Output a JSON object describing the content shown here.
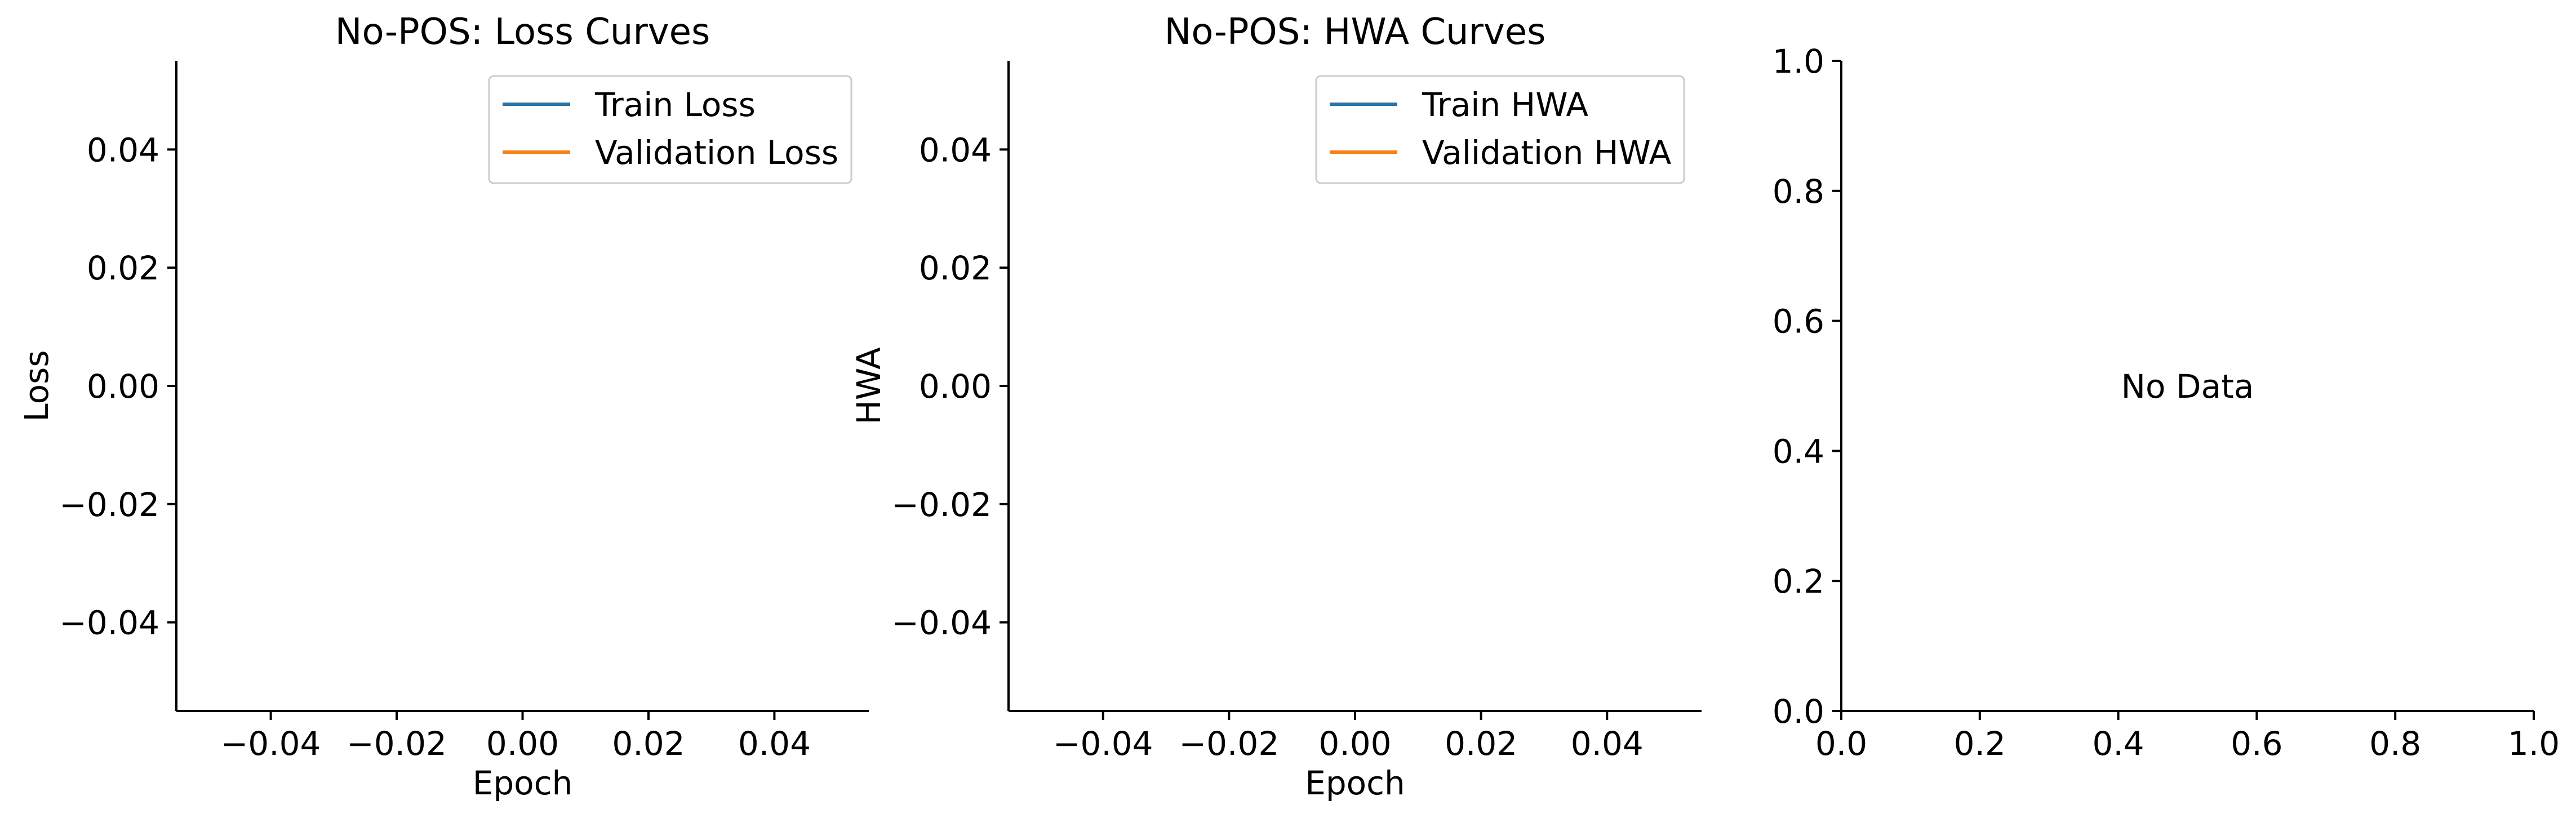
{
  "chart_data": [
    {
      "type": "line",
      "title": "No-POS: Loss Curves",
      "xlabel": "Epoch",
      "ylabel": "Loss",
      "xlim": [
        -0.055,
        0.055
      ],
      "ylim": [
        -0.055,
        0.055
      ],
      "xticks": [
        -0.04,
        -0.02,
        0.0,
        0.02,
        0.04
      ],
      "yticks": [
        -0.04,
        -0.02,
        0.0,
        0.02,
        0.04
      ],
      "xtick_labels": [
        "−0.04",
        "−0.02",
        "0.00",
        "0.02",
        "0.04"
      ],
      "ytick_labels": [
        "−0.04",
        "−0.02",
        "0.00",
        "0.02",
        "0.04"
      ],
      "grid": false,
      "legend": "top-right",
      "series": [
        {
          "name": "Train Loss",
          "color": "#1f77b4",
          "x": [],
          "y": []
        },
        {
          "name": "Validation Loss",
          "color": "#ff7f0e",
          "x": [],
          "y": []
        }
      ]
    },
    {
      "type": "line",
      "title": "No-POS: HWA Curves",
      "xlabel": "Epoch",
      "ylabel": "HWA",
      "xlim": [
        -0.055,
        0.055
      ],
      "ylim": [
        -0.055,
        0.055
      ],
      "xticks": [
        -0.04,
        -0.02,
        0.0,
        0.02,
        0.04
      ],
      "yticks": [
        -0.04,
        -0.02,
        0.0,
        0.02,
        0.04
      ],
      "xtick_labels": [
        "−0.04",
        "−0.02",
        "0.00",
        "0.02",
        "0.04"
      ],
      "ytick_labels": [
        "−0.04",
        "−0.02",
        "0.00",
        "0.02",
        "0.04"
      ],
      "grid": false,
      "legend": "top-right",
      "series": [
        {
          "name": "Train HWA",
          "color": "#1f77b4",
          "x": [],
          "y": []
        },
        {
          "name": "Validation HWA",
          "color": "#ff7f0e",
          "x": [],
          "y": []
        }
      ]
    },
    {
      "type": "line",
      "title": "",
      "xlabel": "",
      "ylabel": "",
      "xlim": [
        0.0,
        1.0
      ],
      "ylim": [
        0.0,
        1.0
      ],
      "xticks": [
        0.0,
        0.2,
        0.4,
        0.6,
        0.8,
        1.0
      ],
      "yticks": [
        0.0,
        0.2,
        0.4,
        0.6,
        0.8,
        1.0
      ],
      "xtick_labels": [
        "0.0",
        "0.2",
        "0.4",
        "0.6",
        "0.8",
        "1.0"
      ],
      "ytick_labels": [
        "0.0",
        "0.2",
        "0.4",
        "0.6",
        "0.8",
        "1.0"
      ],
      "grid": false,
      "annotation": "No Data",
      "series": []
    }
  ]
}
